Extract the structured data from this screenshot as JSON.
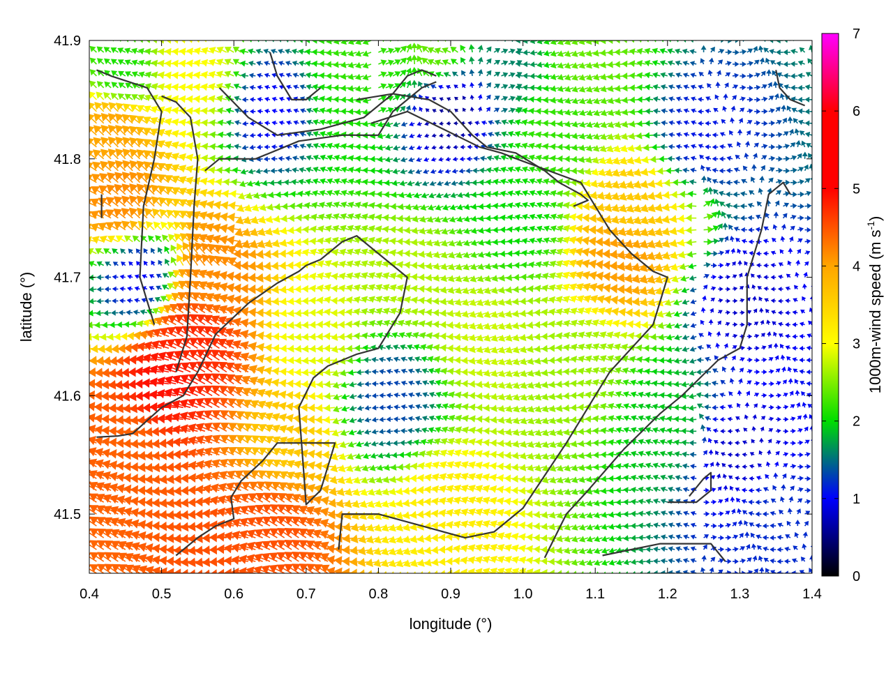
{
  "chart_data": {
    "type": "vector-field",
    "xlabel": "longitude (°)",
    "ylabel": "latitude (°)",
    "xlim": [
      0.4,
      1.4
    ],
    "ylim": [
      41.45,
      41.9
    ],
    "x_ticks": [
      0.4,
      0.5,
      0.6,
      0.7,
      0.8,
      0.9,
      1.0,
      1.1,
      1.2,
      1.3,
      1.4
    ],
    "x_tick_labels": [
      "0.4",
      "0.5",
      "0.6",
      "0.7",
      "0.8",
      "0.9",
      "1.0",
      "1.1",
      "1.2",
      "1.3",
      "1.4"
    ],
    "y_ticks": [
      41.5,
      41.6,
      41.7,
      41.8,
      41.9
    ],
    "y_tick_labels": [
      "41.5",
      "41.6",
      "41.7",
      "41.8",
      "41.9"
    ],
    "colorbar": {
      "label_main": "1000m-wind speed (m s",
      "label_sup": "-1",
      "label_end": ")",
      "range": [
        0,
        7
      ],
      "ticks": [
        0,
        1,
        2,
        3,
        4,
        5,
        6,
        7
      ],
      "tick_labels": [
        "0",
        "1",
        "2",
        "3",
        "4",
        "5",
        "6",
        "7"
      ],
      "colormap": [
        "#000000",
        "#0000ff",
        "#00dd00",
        "#ffff00",
        "#ffa500",
        "#ff0000",
        "#ff00ff"
      ]
    },
    "wind_field": {
      "grid_dlon": 0.01,
      "grid_dlat": 0.01,
      "prevailing_direction": "westward (winds from the east)",
      "speed_centers": [
        {
          "lon": 0.52,
          "lat": 41.61,
          "speed": 5.8
        },
        {
          "lon": 0.56,
          "lat": 41.64,
          "speed": 5.5
        },
        {
          "lon": 0.47,
          "lat": 41.56,
          "speed": 4.8
        },
        {
          "lon": 0.45,
          "lat": 41.76,
          "speed": 4.3
        },
        {
          "lon": 0.44,
          "lat": 41.82,
          "speed": 4.0
        },
        {
          "lon": 0.66,
          "lat": 41.48,
          "speed": 5.0
        },
        {
          "lon": 0.6,
          "lat": 41.47,
          "speed": 5.0
        },
        {
          "lon": 0.58,
          "lat": 41.7,
          "speed": 4.3
        },
        {
          "lon": 0.68,
          "lat": 41.56,
          "speed": 3.6
        },
        {
          "lon": 0.72,
          "lat": 41.65,
          "speed": 2.9
        },
        {
          "lon": 0.85,
          "lat": 41.7,
          "speed": 2.7
        },
        {
          "lon": 0.95,
          "lat": 41.65,
          "speed": 2.8
        },
        {
          "lon": 1.0,
          "lat": 41.75,
          "speed": 2.0
        },
        {
          "lon": 1.15,
          "lat": 41.72,
          "speed": 4.1
        },
        {
          "lon": 1.16,
          "lat": 41.76,
          "speed": 3.6
        },
        {
          "lon": 1.08,
          "lat": 41.62,
          "speed": 2.6
        },
        {
          "lon": 0.9,
          "lat": 41.5,
          "speed": 3.2
        },
        {
          "lon": 1.2,
          "lat": 41.58,
          "speed": 1.9
        },
        {
          "lon": 0.82,
          "lat": 41.6,
          "speed": 1.3
        },
        {
          "lon": 0.76,
          "lat": 41.84,
          "speed": 2.1
        },
        {
          "lon": 0.66,
          "lat": 41.84,
          "speed": 1.0
        },
        {
          "lon": 0.9,
          "lat": 41.84,
          "speed": 0.6
        },
        {
          "lon": 1.25,
          "lat": 41.82,
          "speed": 1.1
        },
        {
          "lon": 1.3,
          "lat": 41.55,
          "speed": 0.8
        },
        {
          "lon": 1.35,
          "lat": 41.5,
          "speed": 1.2
        },
        {
          "lon": 1.3,
          "lat": 41.68,
          "speed": 0.8
        },
        {
          "lon": 0.98,
          "lat": 41.88,
          "speed": 1.6
        },
        {
          "lon": 1.1,
          "lat": 41.89,
          "speed": 2.4
        },
        {
          "lon": 0.77,
          "lat": 41.88,
          "speed": 2.2
        },
        {
          "lon": 0.88,
          "lat": 41.89,
          "speed": 2.4
        },
        {
          "lon": 0.45,
          "lat": 41.87,
          "speed": 2.1
        },
        {
          "lon": 0.47,
          "lat": 41.7,
          "speed": 1.0
        },
        {
          "lon": 0.55,
          "lat": 41.87,
          "speed": 3.0
        },
        {
          "lon": 1.05,
          "lat": 41.82,
          "speed": 2.2
        }
      ]
    },
    "contours": [
      {
        "name": "main-loop",
        "lonlat": [
          [
            0.52,
            41.465
          ],
          [
            0.55,
            41.48
          ],
          [
            0.575,
            41.49
          ],
          [
            0.6,
            41.496
          ],
          [
            0.596,
            41.514
          ],
          [
            0.61,
            41.528
          ],
          [
            0.64,
            41.545
          ],
          [
            0.66,
            41.56
          ],
          [
            0.71,
            41.56
          ],
          [
            0.74,
            41.56
          ],
          [
            0.73,
            41.54
          ],
          [
            0.72,
            41.52
          ],
          [
            0.7,
            41.508
          ],
          [
            0.69,
            41.59
          ],
          [
            0.71,
            41.615
          ],
          [
            0.73,
            41.625
          ],
          [
            0.77,
            41.635
          ],
          [
            0.8,
            41.64
          ],
          [
            0.83,
            41.67
          ],
          [
            0.84,
            41.7
          ],
          [
            0.79,
            41.725
          ],
          [
            0.77,
            41.735
          ],
          [
            0.75,
            41.73
          ],
          [
            0.72,
            41.715
          ],
          [
            0.7,
            41.71
          ],
          [
            0.69,
            41.705
          ],
          [
            0.66,
            41.695
          ],
          [
            0.62,
            41.678
          ],
          [
            0.575,
            41.652
          ],
          [
            0.55,
            41.62
          ],
          [
            0.53,
            41.6
          ],
          [
            0.5,
            41.59
          ],
          [
            0.46,
            41.568
          ],
          [
            0.44,
            41.566
          ],
          [
            0.41,
            41.565
          ]
        ]
      },
      {
        "name": "left-branch-1",
        "lonlat": [
          [
            0.49,
            41.66
          ],
          [
            0.47,
            41.7
          ],
          [
            0.475,
            41.76
          ],
          [
            0.49,
            41.8
          ],
          [
            0.5,
            41.84
          ],
          [
            0.48,
            41.86
          ],
          [
            0.43,
            41.87
          ],
          [
            0.41,
            41.875
          ]
        ]
      },
      {
        "name": "left-branch-2",
        "lonlat": [
          [
            0.52,
            41.62
          ],
          [
            0.535,
            41.65
          ],
          [
            0.54,
            41.7
          ],
          [
            0.545,
            41.76
          ],
          [
            0.55,
            41.8
          ],
          [
            0.54,
            41.835
          ],
          [
            0.52,
            41.848
          ],
          [
            0.5,
            41.853
          ]
        ]
      },
      {
        "name": "left-stub",
        "lonlat": [
          [
            0.417,
            41.75
          ],
          [
            0.417,
            41.77
          ]
        ]
      },
      {
        "name": "central-ridge",
        "lonlat": [
          [
            0.56,
            41.79
          ],
          [
            0.58,
            41.8
          ],
          [
            0.63,
            41.8
          ],
          [
            0.69,
            41.815
          ],
          [
            0.75,
            41.82
          ],
          [
            0.8,
            41.82
          ],
          [
            0.82,
            41.84
          ],
          [
            0.84,
            41.85
          ],
          [
            0.86,
            41.86
          ],
          [
            0.88,
            41.865
          ]
        ]
      },
      {
        "name": "north-lobe",
        "lonlat": [
          [
            0.58,
            41.86
          ],
          [
            0.62,
            41.835
          ],
          [
            0.66,
            41.82
          ],
          [
            0.72,
            41.825
          ],
          [
            0.78,
            41.835
          ],
          [
            0.82,
            41.855
          ],
          [
            0.84,
            41.87
          ],
          [
            0.86,
            41.875
          ],
          [
            0.88,
            41.87
          ]
        ]
      },
      {
        "name": "north-lobe-2",
        "lonlat": [
          [
            0.65,
            41.89
          ],
          [
            0.66,
            41.87
          ],
          [
            0.68,
            41.85
          ],
          [
            0.7,
            41.85
          ],
          [
            0.72,
            41.86
          ]
        ]
      },
      {
        "name": "center-inner",
        "lonlat": [
          [
            0.77,
            41.85
          ],
          [
            0.82,
            41.855
          ],
          [
            0.87,
            41.85
          ],
          [
            0.9,
            41.84
          ],
          [
            0.93,
            41.82
          ],
          [
            0.95,
            41.81
          ],
          [
            0.99,
            41.805
          ],
          [
            1.03,
            41.79
          ],
          [
            1.05,
            41.78
          ],
          [
            1.08,
            41.77
          ],
          [
            1.09,
            41.765
          ],
          [
            1.07,
            41.76
          ]
        ]
      },
      {
        "name": "ring",
        "lonlat": [
          [
            0.79,
            41.83
          ],
          [
            0.84,
            41.84
          ],
          [
            0.89,
            41.825
          ],
          [
            0.94,
            41.81
          ],
          [
            0.97,
            41.805
          ],
          [
            1.0,
            41.798
          ],
          [
            1.08,
            41.78
          ],
          [
            1.12,
            41.74
          ],
          [
            1.15,
            41.72
          ],
          [
            1.18,
            41.705
          ],
          [
            1.2,
            41.7
          ],
          [
            1.2,
            41.7
          ],
          [
            1.18,
            41.66
          ],
          [
            1.12,
            41.62
          ],
          [
            1.06,
            41.56
          ],
          [
            1.0,
            41.505
          ],
          [
            0.98,
            41.495
          ],
          [
            0.96,
            41.485
          ],
          [
            0.92,
            41.48
          ],
          [
            0.86,
            41.49
          ],
          [
            0.8,
            41.5
          ],
          [
            0.75,
            41.5
          ],
          [
            0.745,
            41.47
          ]
        ]
      },
      {
        "name": "east-contour",
        "lonlat": [
          [
            1.03,
            41.463
          ],
          [
            1.06,
            41.5
          ],
          [
            1.09,
            41.52
          ],
          [
            1.14,
            41.555
          ],
          [
            1.19,
            41.585
          ],
          [
            1.22,
            41.6
          ],
          [
            1.245,
            41.615
          ],
          [
            1.27,
            41.63
          ],
          [
            1.3,
            41.64
          ],
          [
            1.31,
            41.66
          ],
          [
            1.31,
            41.7
          ],
          [
            1.33,
            41.74
          ],
          [
            1.34,
            41.77
          ],
          [
            1.36,
            41.78
          ],
          [
            1.37,
            41.77
          ]
        ]
      },
      {
        "name": "east-stub",
        "lonlat": [
          [
            1.35,
            41.875
          ],
          [
            1.355,
            41.86
          ],
          [
            1.37,
            41.85
          ],
          [
            1.39,
            41.845
          ]
        ]
      },
      {
        "name": "southeast-arc",
        "lonlat": [
          [
            1.11,
            41.465
          ],
          [
            1.15,
            41.47
          ],
          [
            1.19,
            41.475
          ],
          [
            1.22,
            41.475
          ],
          [
            1.26,
            41.475
          ],
          [
            1.28,
            41.46
          ]
        ]
      },
      {
        "name": "southeast-loop",
        "lonlat": [
          [
            1.2,
            41.51
          ],
          [
            1.24,
            41.51
          ],
          [
            1.26,
            41.52
          ],
          [
            1.26,
            41.535
          ],
          [
            1.25,
            41.53
          ],
          [
            1.23,
            41.515
          ]
        ]
      }
    ]
  }
}
